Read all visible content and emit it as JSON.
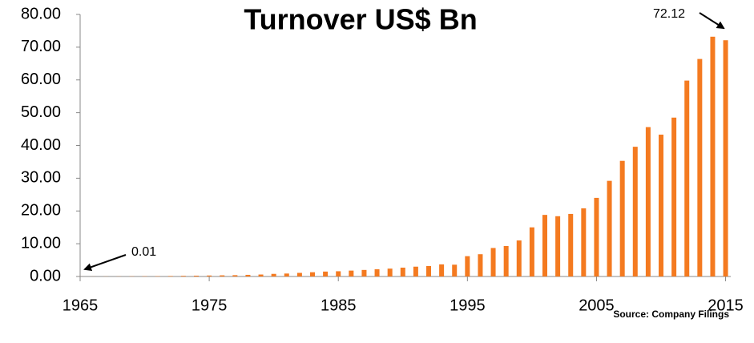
{
  "chart_data": {
    "type": "bar",
    "title": "Turnover US$ Bn",
    "x": [
      1965,
      1966,
      1967,
      1968,
      1969,
      1970,
      1971,
      1972,
      1973,
      1974,
      1975,
      1976,
      1977,
      1978,
      1979,
      1980,
      1981,
      1982,
      1983,
      1984,
      1985,
      1986,
      1987,
      1988,
      1989,
      1990,
      1991,
      1992,
      1993,
      1994,
      1995,
      1996,
      1997,
      1998,
      1999,
      2000,
      2001,
      2002,
      2003,
      2004,
      2005,
      2006,
      2007,
      2008,
      2009,
      2010,
      2011,
      2012,
      2013,
      2014,
      2015
    ],
    "values": [
      0.01,
      0.02,
      0.03,
      0.04,
      0.06,
      0.08,
      0.1,
      0.15,
      0.2,
      0.25,
      0.3,
      0.35,
      0.4,
      0.5,
      0.6,
      0.8,
      0.9,
      1.1,
      1.3,
      1.5,
      1.6,
      1.8,
      2.0,
      2.2,
      2.4,
      2.7,
      3.0,
      3.2,
      3.7,
      3.6,
      6.2,
      6.8,
      8.7,
      9.3,
      11.0,
      15.0,
      18.8,
      18.4,
      19.1,
      20.8,
      24.0,
      29.2,
      35.3,
      39.6,
      45.6,
      43.3,
      48.5,
      59.8,
      66.4,
      73.2,
      72.12
    ],
    "color": "#f47a20",
    "xlim": [
      1965,
      2015.4
    ],
    "xticks": [
      1965,
      1975,
      1985,
      1995,
      2005,
      2015
    ],
    "ylim": [
      0,
      80
    ],
    "yticks": [
      {
        "value": 0,
        "label": "0.00"
      },
      {
        "value": 10,
        "label": "10.00"
      },
      {
        "value": 20,
        "label": "20.00"
      },
      {
        "value": 30,
        "label": "30.00"
      },
      {
        "value": 40,
        "label": "40.00"
      },
      {
        "value": 50,
        "label": "50.00"
      },
      {
        "value": 60,
        "label": "60.00"
      },
      {
        "value": 70,
        "label": "70.00"
      },
      {
        "value": 80,
        "label": "80.00"
      }
    ],
    "grid": false,
    "annotations": [
      {
        "text": "72.12"
      },
      {
        "text": "0.01"
      },
      {
        "text": "Source: Company Filings"
      }
    ]
  }
}
